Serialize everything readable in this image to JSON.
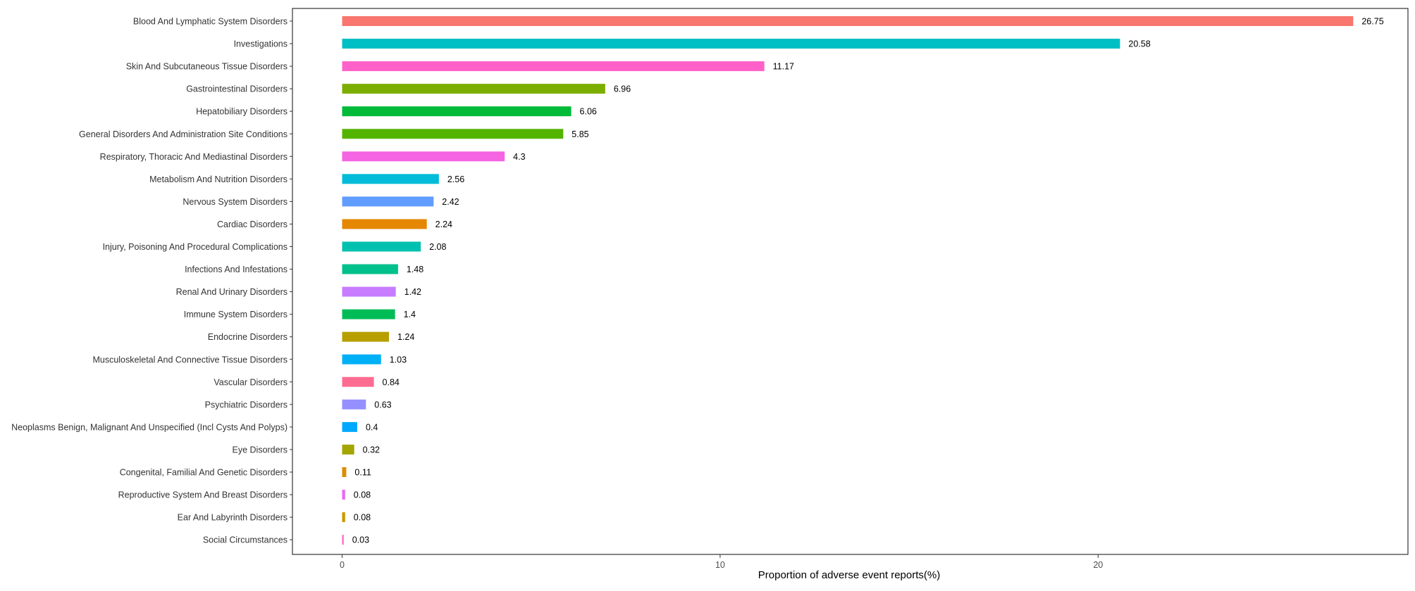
{
  "chart_data": {
    "type": "bar",
    "orientation": "horizontal",
    "xlabel": "Proportion of adverse event reports(%)",
    "ylabel": "",
    "xlim": [
      -1.3,
      27.8
    ],
    "x_ticks": [
      0,
      10,
      20
    ],
    "x_tick_labels": [
      "0",
      "10",
      "20"
    ],
    "grid": false,
    "legend": "none",
    "categories": [
      "Blood And Lymphatic System Disorders",
      "Investigations",
      "Skin And Subcutaneous Tissue Disorders",
      "Gastrointestinal Disorders",
      "Hepatobiliary Disorders",
      "General Disorders And Administration Site Conditions",
      "Respiratory, Thoracic And Mediastinal Disorders",
      "Metabolism And Nutrition Disorders",
      "Nervous System Disorders",
      "Cardiac Disorders",
      "Injury, Poisoning And Procedural Complications",
      "Infections And Infestations",
      "Renal And Urinary Disorders",
      "Immune System Disorders",
      "Endocrine Disorders",
      "Musculoskeletal And Connective Tissue Disorders",
      "Vascular Disorders",
      "Psychiatric Disorders",
      "Neoplasms Benign, Malignant And Unspecified (Incl Cysts And Polyps)",
      "Eye Disorders",
      "Congenital, Familial And Genetic Disorders",
      "Reproductive System And Breast Disorders",
      "Ear And Labyrinth Disorders",
      "Social Circumstances"
    ],
    "values": [
      26.75,
      20.58,
      11.17,
      6.96,
      6.06,
      5.85,
      4.3,
      2.56,
      2.42,
      2.24,
      2.08,
      1.48,
      1.42,
      1.4,
      1.24,
      1.03,
      0.84,
      0.63,
      0.4,
      0.32,
      0.11,
      0.08,
      0.08,
      0.03
    ],
    "value_labels": [
      "26.75",
      "20.58",
      "11.17",
      "6.96",
      "6.06",
      "5.85",
      "4.3",
      "2.56",
      "2.42",
      "2.24",
      "2.08",
      "1.48",
      "1.42",
      "1.4",
      "1.24",
      "1.03",
      "0.84",
      "0.63",
      "0.4",
      "0.32",
      "0.11",
      "0.08",
      "0.08",
      "0.03"
    ],
    "colors": [
      "#F8766D",
      "#00BFC4",
      "#FF61C9",
      "#7CAE00",
      "#00BA38",
      "#53B400",
      "#F564E3",
      "#00BCD8",
      "#619CFF",
      "#E58700",
      "#00C0AF",
      "#00C08B",
      "#C77CFF",
      "#00BC56",
      "#B79F00",
      "#00B0F6",
      "#FF6C91",
      "#9590FF",
      "#00A9FF",
      "#A3A500",
      "#DE8C00",
      "#E76BF3",
      "#C99800",
      "#FF62BC"
    ]
  }
}
